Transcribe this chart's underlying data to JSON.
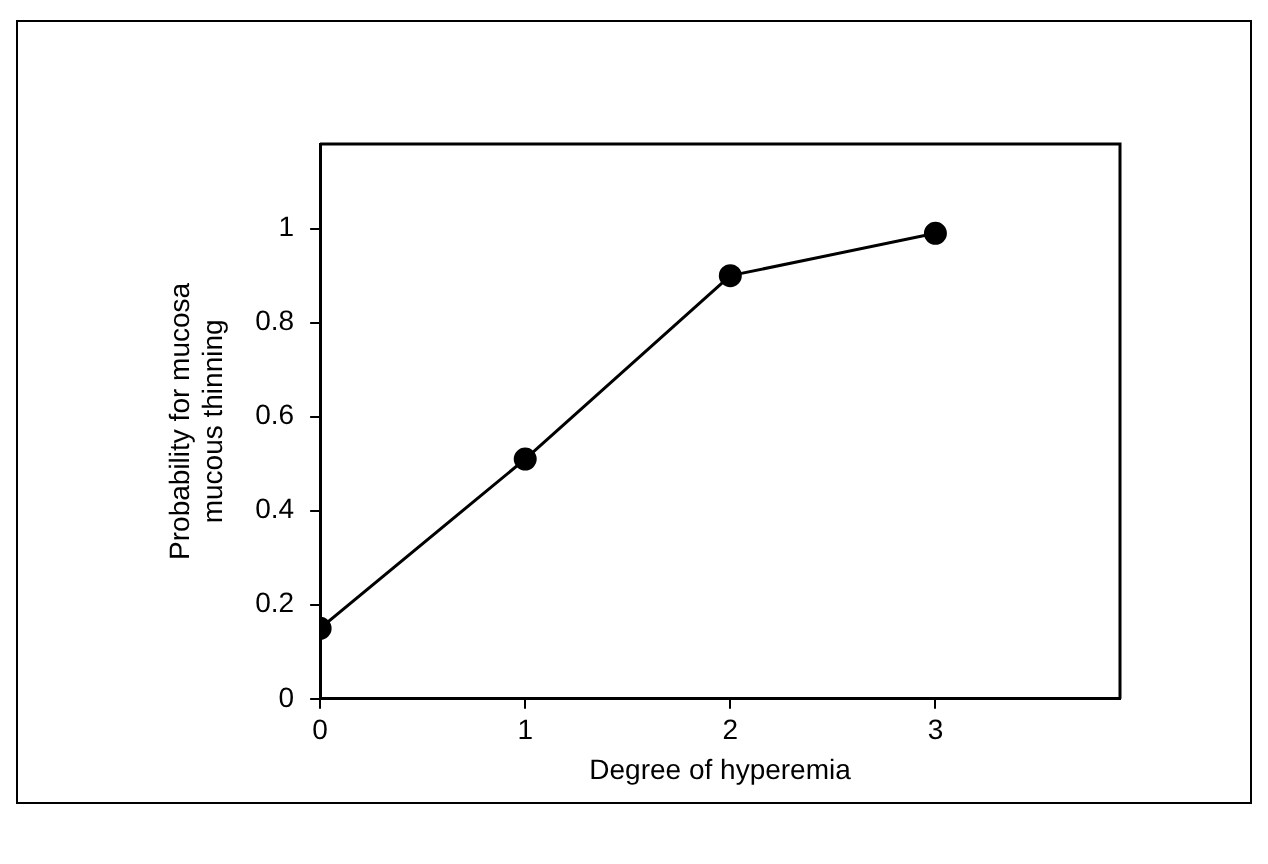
{
  "chart_data": {
    "type": "line",
    "xlabel": "Degree of hyperemia",
    "ylabel": "Probability for mucosa\nmucous thinning",
    "x": [
      0,
      1,
      2,
      3
    ],
    "series": [
      {
        "color": "#000000",
        "values": [
          0.15,
          0.51,
          0.9,
          0.99
        ]
      }
    ],
    "xlim": [
      0,
      3.9
    ],
    "xticks": [
      0,
      1,
      2,
      3
    ],
    "ylim": [
      0,
      1.18
    ],
    "yticks": [
      0,
      0.2,
      0.4,
      0.6,
      0.8,
      1
    ],
    "grid": false,
    "legend": false,
    "marker": "circle",
    "line_style": "solid"
  }
}
